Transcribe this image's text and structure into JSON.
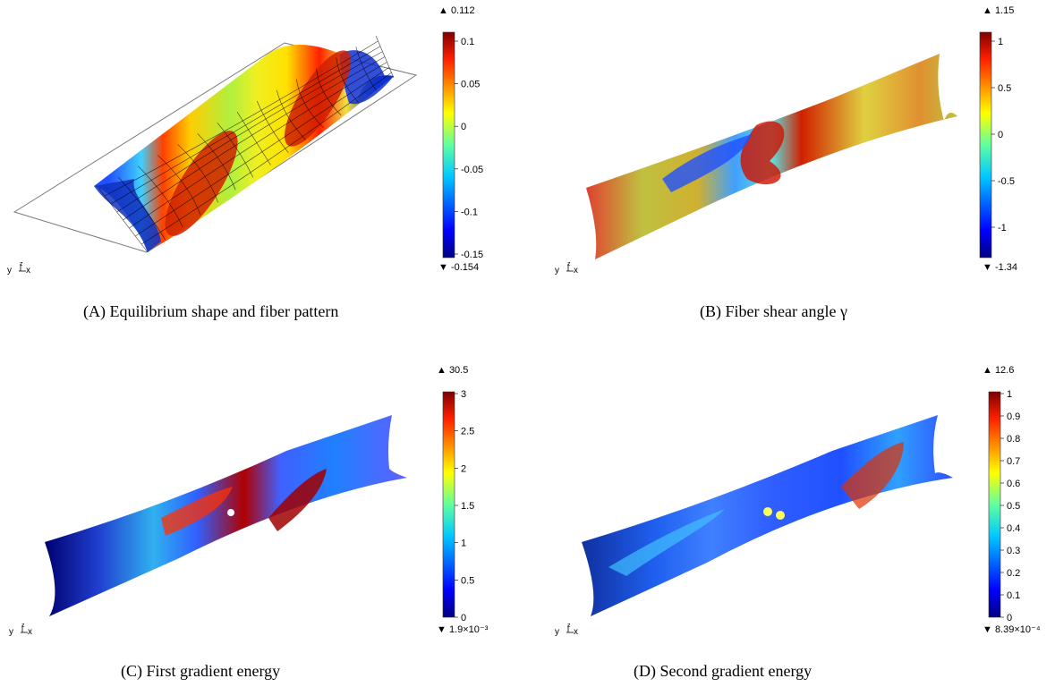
{
  "panels": [
    {
      "id": "a",
      "tag": "(A)",
      "caption": "Equilibrium shape and fiber pattern",
      "colorbar": {
        "max_label": "▲ 0.112",
        "min_label": "▼ -0.154",
        "ticks": [
          "0.1",
          "0.05",
          "0",
          "-0.05",
          "-0.1",
          "-0.15"
        ]
      },
      "triad": {
        "y": "y",
        "z": "z",
        "x": "x"
      }
    },
    {
      "id": "b",
      "tag": "(B)",
      "caption": "Fiber shear angle γ",
      "colorbar": {
        "max_label": "▲ 1.15",
        "min_label": "▼ -1.34",
        "ticks": [
          "1",
          "0.5",
          "0",
          "-0.5",
          "-1"
        ]
      },
      "triad": {
        "y": "y",
        "z": "z",
        "x": "x"
      }
    },
    {
      "id": "c",
      "tag": "(C)",
      "caption": "First gradient energy",
      "colorbar": {
        "max_label": "▲ 30.5",
        "min_label": "▼ 1.9×10⁻³",
        "ticks": [
          "3",
          "2.5",
          "2",
          "1.5",
          "1",
          "0.5",
          "0"
        ]
      },
      "triad": {
        "y": "y",
        "z": "z",
        "x": "x"
      }
    },
    {
      "id": "d",
      "tag": "(D)",
      "caption": "Second gradient energy",
      "colorbar": {
        "max_label": "▲ 12.6",
        "min_label": "▼ 8.39×10⁻⁴",
        "ticks": [
          "1",
          "0.9",
          "0.8",
          "0.7",
          "0.6",
          "0.5",
          "0.4",
          "0.3",
          "0.2",
          "0.1",
          "0"
        ]
      },
      "triad": {
        "y": "y",
        "z": "z",
        "x": "x"
      }
    }
  ],
  "colors": {
    "jet": [
      "#00007f",
      "#0000ff",
      "#00bfff",
      "#40ffbf",
      "#ffff00",
      "#ff7f00",
      "#ff0000",
      "#7f0000"
    ]
  }
}
